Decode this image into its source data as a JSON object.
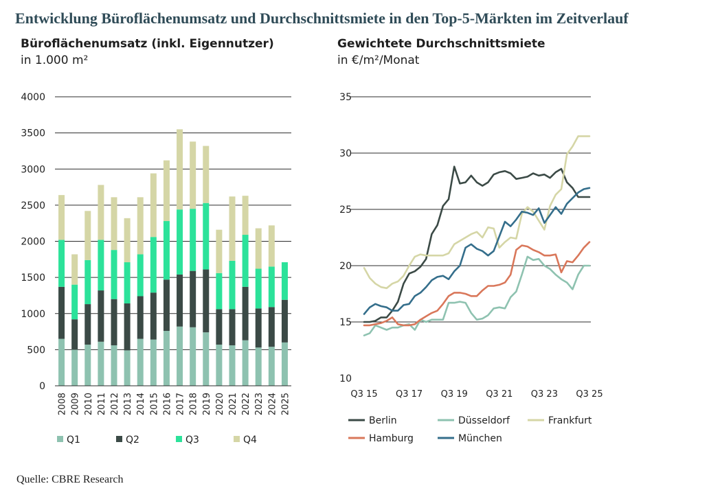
{
  "title": "Entwicklung Büroflächenumsatz und Durchschnittsmiete in den Top-5-Märkten im Zeitverlauf",
  "source": "Quelle: CBRE Research",
  "chart_data": [
    {
      "type": "bar",
      "stacked": true,
      "title": "Büroflächenumsatz (inkl. Eigennutzer)",
      "subtitle": "in 1.000 m²",
      "ylim": [
        0,
        4000
      ],
      "yticks": [
        0,
        500,
        1000,
        1500,
        2000,
        2500,
        3000,
        3500,
        4000
      ],
      "grid": true,
      "legend": "bottom",
      "categories": [
        "2008",
        "2009",
        "2010",
        "2011",
        "2012",
        "2013",
        "2014",
        "2015",
        "2016",
        "2017",
        "2018",
        "2019",
        "2020",
        "2021",
        "2022",
        "2023",
        "2024",
        "2025"
      ],
      "series": [
        {
          "name": "Q1",
          "color": "#8ec2b0",
          "values": [
            650,
            500,
            570,
            610,
            560,
            490,
            650,
            640,
            760,
            820,
            810,
            740,
            570,
            560,
            630,
            530,
            540,
            600
          ]
        },
        {
          "name": "Q2",
          "color": "#3b4a46",
          "values": [
            720,
            420,
            560,
            710,
            640,
            650,
            590,
            650,
            710,
            720,
            780,
            870,
            490,
            500,
            740,
            540,
            550,
            590
          ]
        },
        {
          "name": "Q3",
          "color": "#2ce29a",
          "values": [
            650,
            480,
            610,
            700,
            680,
            570,
            580,
            770,
            810,
            900,
            860,
            920,
            500,
            670,
            720,
            550,
            560,
            520
          ]
        },
        {
          "name": "Q4",
          "color": "#d5d6a6",
          "values": [
            620,
            420,
            680,
            760,
            730,
            610,
            790,
            880,
            840,
            1110,
            930,
            790,
            600,
            890,
            540,
            560,
            570,
            0
          ]
        }
      ]
    },
    {
      "type": "line",
      "title": "Gewichtete Durchschnittsmiete",
      "subtitle": "in €/m²/Monat",
      "ylim": [
        10,
        35
      ],
      "yticks": [
        10,
        15,
        20,
        25,
        30,
        35
      ],
      "grid": true,
      "legend": "bottom",
      "x": [
        "Q3 15",
        "Q4 15",
        "Q1 16",
        "Q2 16",
        "Q3 16",
        "Q4 16",
        "Q1 17",
        "Q2 17",
        "Q3 17",
        "Q4 17",
        "Q1 18",
        "Q2 18",
        "Q3 18",
        "Q4 18",
        "Q1 19",
        "Q2 19",
        "Q3 19",
        "Q4 19",
        "Q1 20",
        "Q2 20",
        "Q3 20",
        "Q4 20",
        "Q1 21",
        "Q2 21",
        "Q3 21",
        "Q4 21",
        "Q1 22",
        "Q2 22",
        "Q3 22",
        "Q4 22",
        "Q1 23",
        "Q2 23",
        "Q3 23",
        "Q4 23",
        "Q1 24",
        "Q2 24",
        "Q3 24",
        "Q4 24",
        "Q1 25",
        "Q2 25",
        "Q3 25"
      ],
      "xticks": [
        "Q3 15",
        "Q3 17",
        "Q3 19",
        "Q3 21",
        "Q3 23",
        "Q3 25"
      ],
      "series": [
        {
          "name": "Berlin",
          "color": "#3b4a46",
          "values": [
            15.0,
            15.0,
            15.1,
            15.4,
            15.4,
            16.0,
            16.8,
            18.4,
            19.3,
            19.5,
            19.9,
            20.6,
            22.8,
            23.6,
            25.3,
            25.9,
            28.8,
            27.3,
            27.4,
            28.0,
            27.4,
            27.1,
            27.4,
            28.1,
            28.3,
            28.4,
            28.2,
            27.7,
            27.8,
            27.9,
            28.2,
            28.0,
            28.1,
            27.8,
            28.3,
            28.6,
            27.4,
            26.9,
            26.1,
            26.1,
            26.1
          ]
        },
        {
          "name": "Düsseldorf",
          "color": "#8ec2b0",
          "values": [
            13.8,
            14.0,
            14.7,
            14.5,
            14.3,
            14.5,
            14.5,
            14.7,
            14.8,
            14.3,
            15.2,
            15.0,
            15.2,
            15.2,
            15.2,
            16.7,
            16.7,
            16.8,
            16.7,
            15.8,
            15.2,
            15.3,
            15.6,
            16.2,
            16.3,
            16.2,
            17.2,
            17.7,
            19.2,
            20.8,
            20.5,
            20.6,
            20.0,
            19.7,
            19.2,
            18.8,
            18.5,
            17.9,
            19.2,
            20.0,
            20.0
          ]
        },
        {
          "name": "Frankfurt",
          "color": "#d5d6a6",
          "values": [
            19.8,
            18.9,
            18.4,
            18.1,
            18.0,
            18.4,
            18.6,
            19.1,
            20.0,
            20.8,
            21.0,
            20.9,
            20.9,
            20.9,
            20.9,
            21.1,
            21.9,
            22.2,
            22.5,
            22.8,
            23.0,
            22.5,
            23.4,
            23.3,
            21.6,
            22.1,
            22.5,
            22.4,
            24.6,
            25.2,
            24.8,
            24.0,
            23.2,
            25.3,
            26.3,
            26.8,
            29.9,
            30.6,
            31.5,
            31.5,
            31.5
          ]
        },
        {
          "name": "Hamburg",
          "color": "#d9775a",
          "values": [
            14.7,
            14.7,
            14.8,
            14.9,
            15.1,
            15.4,
            14.8,
            14.7,
            14.7,
            14.8,
            15.2,
            15.5,
            15.8,
            16.0,
            16.6,
            17.3,
            17.6,
            17.6,
            17.5,
            17.3,
            17.3,
            17.8,
            18.2,
            18.2,
            18.3,
            18.5,
            19.2,
            21.4,
            21.8,
            21.7,
            21.4,
            21.2,
            20.9,
            20.9,
            21.0,
            19.4,
            20.4,
            20.3,
            20.9,
            21.6,
            22.1
          ]
        },
        {
          "name": "München",
          "color": "#346e8b",
          "values": [
            15.7,
            16.3,
            16.6,
            16.4,
            16.3,
            16.0,
            16.0,
            16.5,
            16.6,
            17.3,
            17.6,
            18.1,
            18.7,
            19.0,
            19.1,
            18.8,
            19.5,
            20.0,
            21.6,
            21.9,
            21.5,
            21.3,
            20.9,
            21.3,
            22.6,
            23.9,
            23.5,
            24.1,
            24.8,
            24.7,
            24.5,
            25.1,
            23.8,
            24.5,
            25.2,
            24.6,
            25.5,
            26.0,
            26.5,
            26.8,
            26.9
          ]
        }
      ]
    }
  ]
}
